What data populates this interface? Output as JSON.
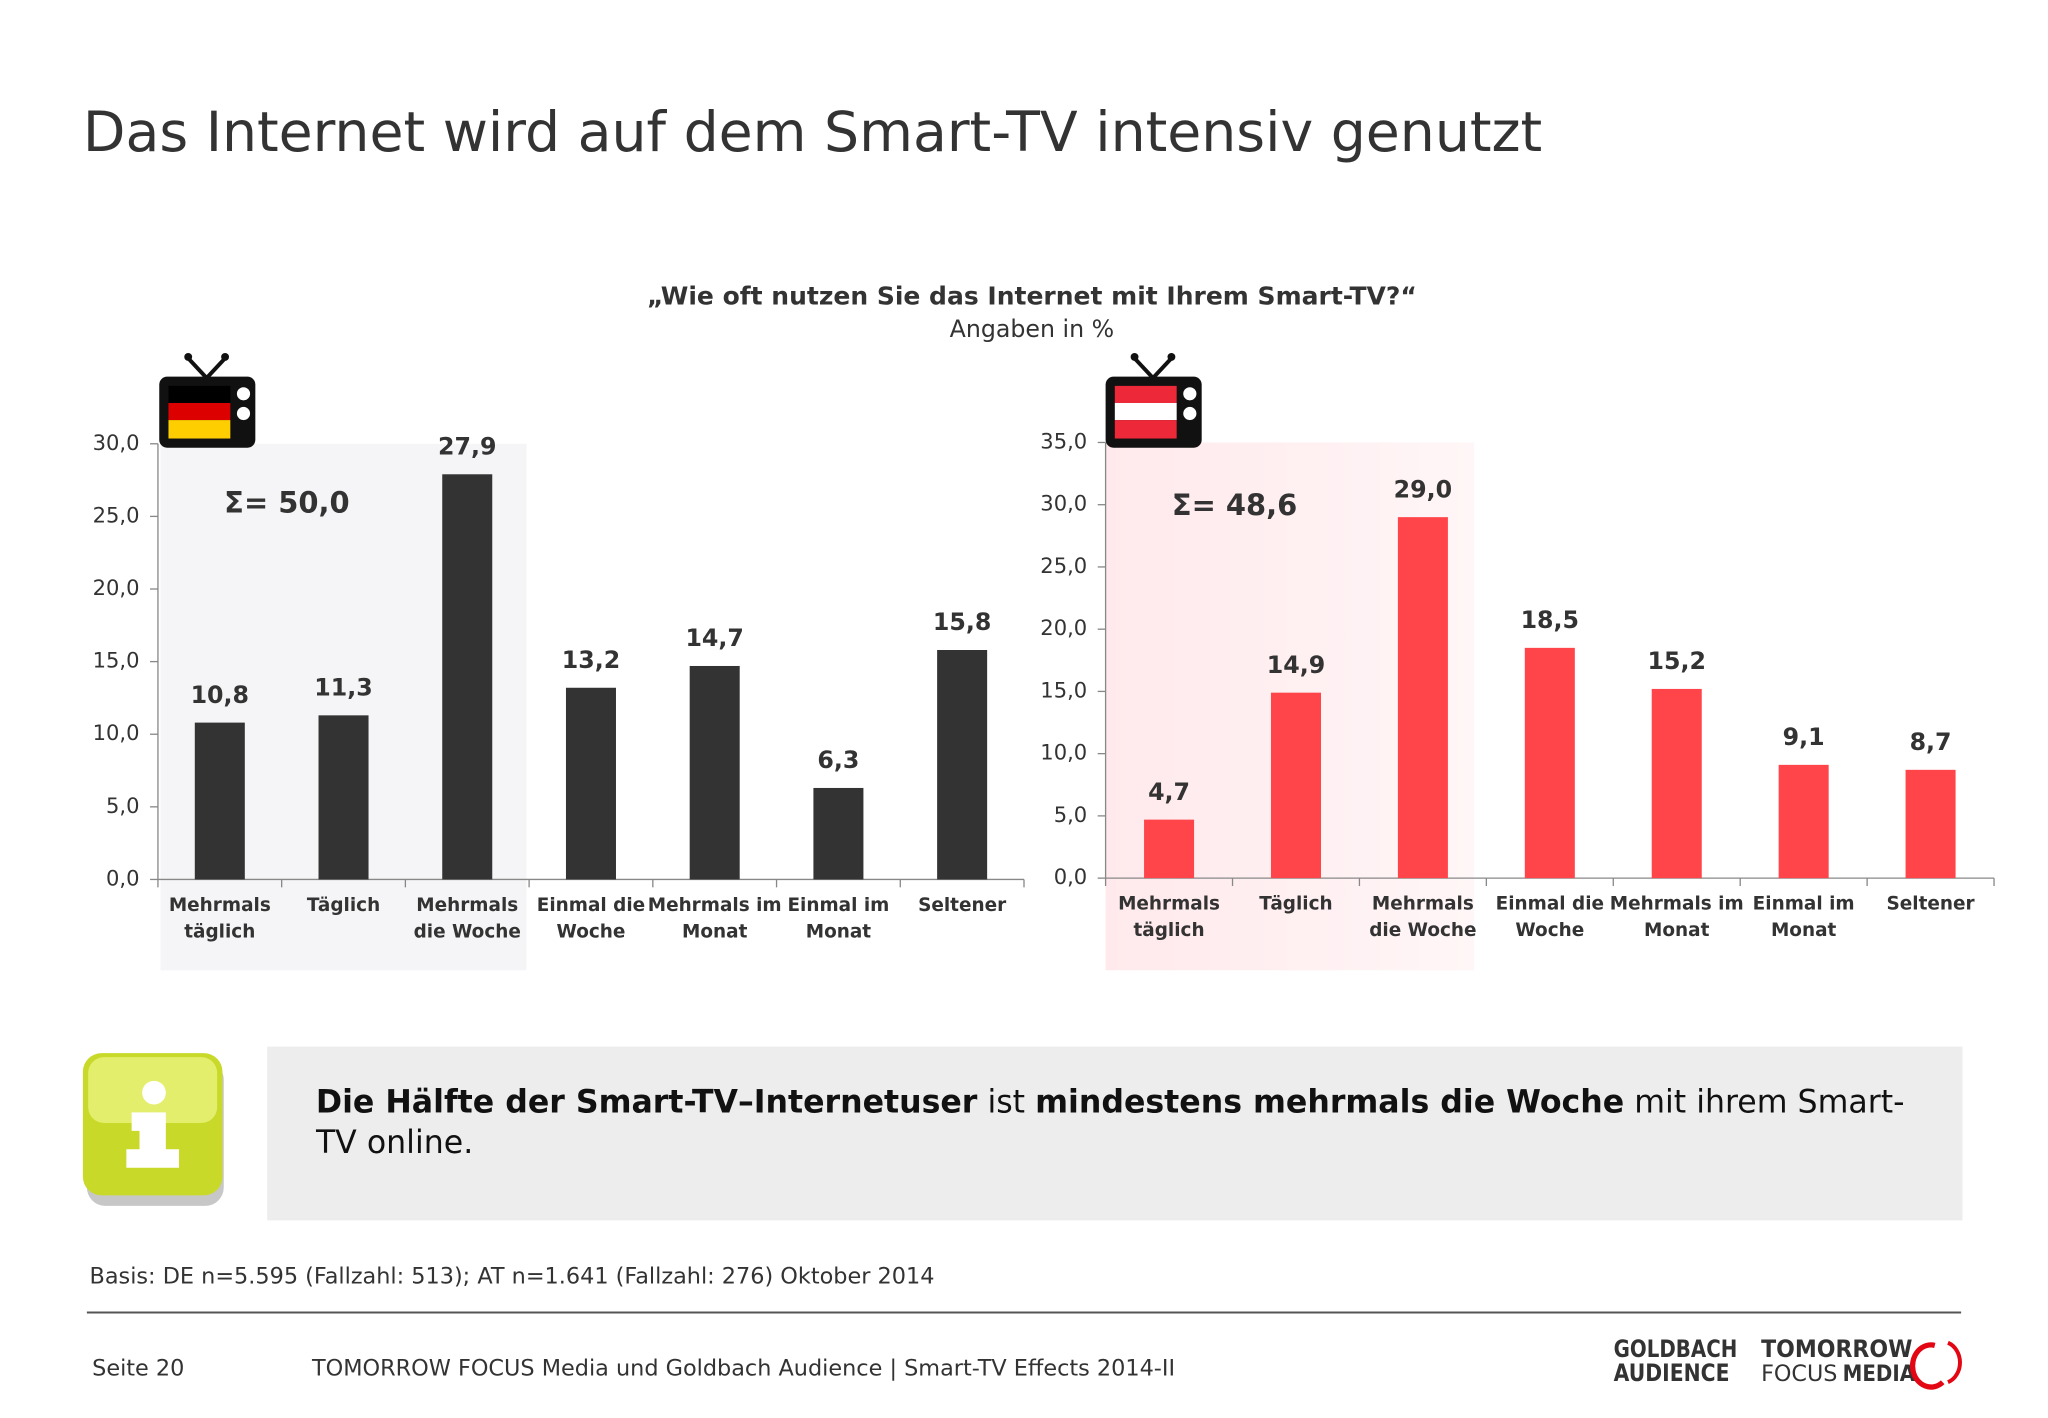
{
  "title": "Das Internet wird auf dem Smart-TV intensiv genutzt",
  "question": "„Wie oft nutzen Sie das Internet mit Ihrem Smart-TV?“",
  "subtitle": "Angaben in %",
  "chart_data": [
    {
      "type": "bar",
      "color": "#333333",
      "annotation": "Σ= 50,0",
      "categories": [
        "Mehrmals täglich",
        "Täglich",
        "Mehrmals die Woche",
        "Einmal die Woche",
        "Mehrmals im Monat",
        "Einmal im Monat",
        "Seltener"
      ],
      "values": [
        10.8,
        11.3,
        27.9,
        13.2,
        14.7,
        6.3,
        15.8
      ],
      "value_labels": [
        "10,8",
        "11,3",
        "27,9",
        "13,2",
        "14,7",
        "6,3",
        "15,8"
      ],
      "ylim": [
        0,
        30
      ],
      "yticks": [
        {
          "value": 0,
          "label": "0,0"
        },
        {
          "value": 5,
          "label": "5,0"
        },
        {
          "value": 10,
          "label": "10,0"
        },
        {
          "value": 15,
          "label": "15,0"
        },
        {
          "value": 20,
          "label": "20,0"
        },
        {
          "value": 25,
          "label": "25,0"
        },
        {
          "value": 30,
          "label": "30,0"
        }
      ]
    },
    {
      "type": "bar",
      "color": "#ff4549",
      "annotation": "Σ= 48,6",
      "categories": [
        "Mehrmals täglich",
        "Täglich",
        "Mehrmals die Woche",
        "Einmal die Woche",
        "Mehrmals im Monat",
        "Einmal im Monat",
        "Seltener"
      ],
      "values": [
        4.7,
        14.9,
        29.0,
        18.5,
        15.2,
        9.1,
        8.7
      ],
      "value_labels": [
        "4,7",
        "14,9",
        "29,0",
        "18,5",
        "15,2",
        "9,1",
        "8,7"
      ],
      "ylim": [
        0,
        35
      ],
      "yticks": [
        {
          "value": 0,
          "label": "0,0"
        },
        {
          "value": 5,
          "label": "5,0"
        },
        {
          "value": 10,
          "label": "10,0"
        },
        {
          "value": 15,
          "label": "15,0"
        },
        {
          "value": 20,
          "label": "20,0"
        },
        {
          "value": 25,
          "label": "25,0"
        },
        {
          "value": 30,
          "label": "30,0"
        },
        {
          "value": 35,
          "label": "35,0"
        }
      ]
    }
  ],
  "info": [
    {
      "text": "Die Hälfte der Smart-TV–Internetuser",
      "bold": true
    },
    {
      "text": " ist ",
      "bold": false
    },
    {
      "text": "mindestens mehrmals die Woche",
      "bold": true
    },
    {
      "text": " mit ihrem Smart-TV online.",
      "bold": false
    }
  ],
  "basis": "Basis: DE n=5.595 (Fallzahl: 513); AT n=1.641 (Fallzahl: 276) Oktober 2014",
  "footer": {
    "page": "Seite 20",
    "text": "TOMORROW FOCUS Media und Goldbach Audience | Smart-TV Effects 2014-II"
  },
  "logos": {
    "goldbach": "GOLDBACH",
    "audience": "AUDIENCE",
    "tomorrow": "TOMORROW",
    "focus": "FOCUS",
    "media": "MEDIA"
  }
}
